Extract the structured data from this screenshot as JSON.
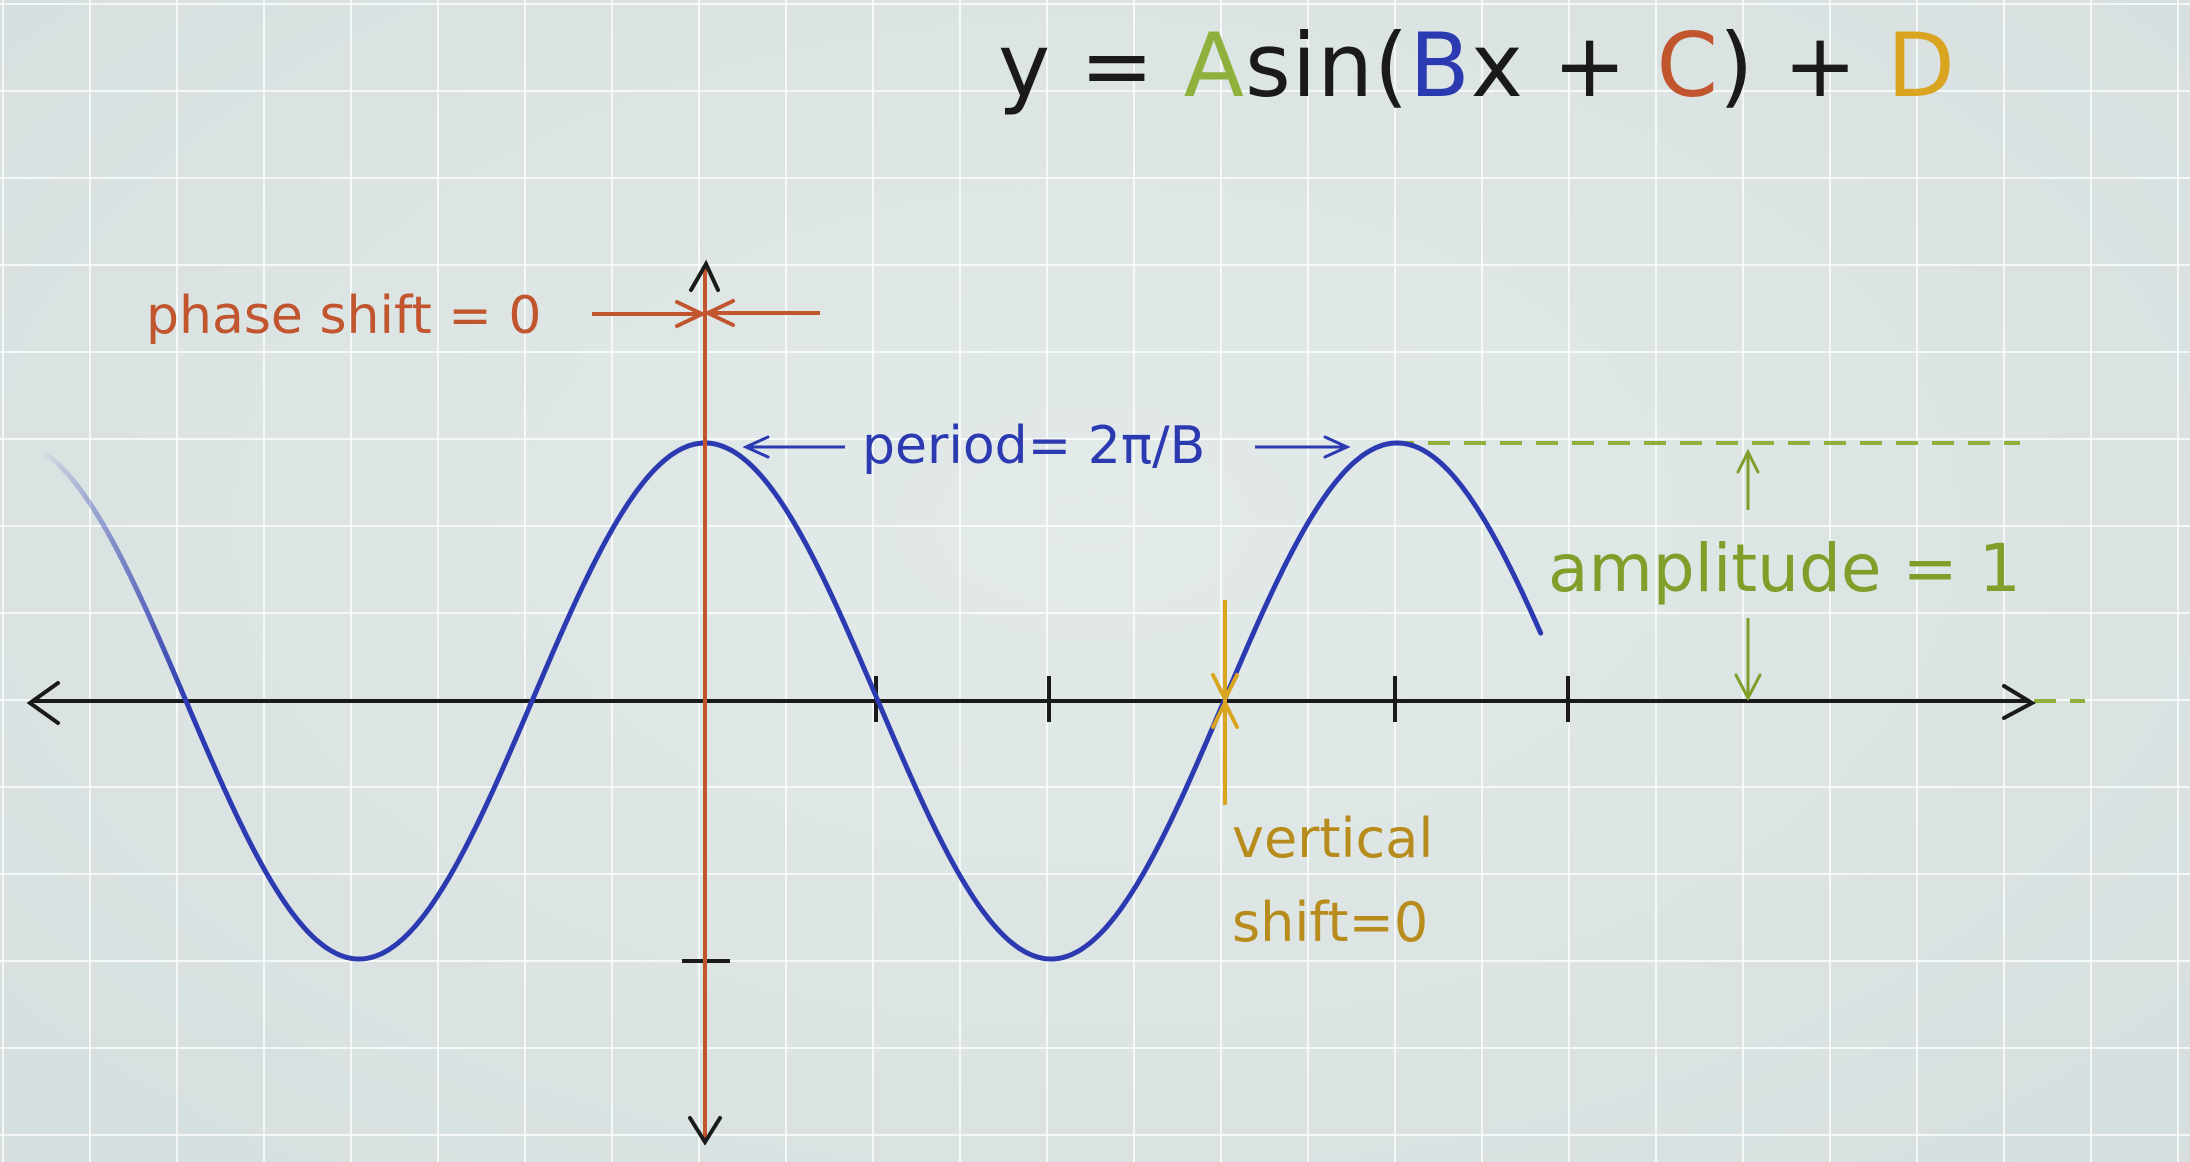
{
  "colors": {
    "ink": "#1a1a1a",
    "curve": "#2b3ab0",
    "amplitude": "#7f9f2a",
    "period": "#2b3ab0",
    "phase": "#c0552e",
    "vertical": "#b88c1c",
    "axis": "#1a1a1a"
  },
  "equation": {
    "y": "y",
    "eq": " = ",
    "A": "A",
    "sin": "sin(",
    "B": "B",
    "x_plus": "x + ",
    "C": "C",
    "close_plus": ") + ",
    "D": "D"
  },
  "labels": {
    "phase_shift": "phase shift = 0",
    "period": "period= 2π/B",
    "amplitude": "amplitude = 1",
    "vertical_shift_line1": "vertical",
    "vertical_shift_line2": "shift=0"
  },
  "function": {
    "amplitude": 1,
    "vertical_shift": 0,
    "phase_shift": 0,
    "shape": "cosine",
    "x_from_peaks": -2.2,
    "x_to_peaks": 1.7
  }
}
